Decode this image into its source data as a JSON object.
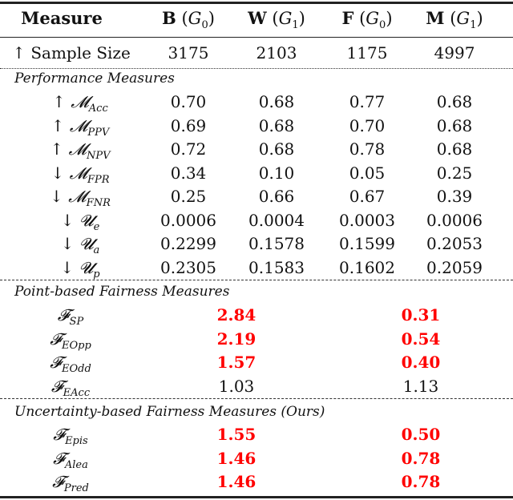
{
  "header": {
    "measure": "Measure",
    "columns": [
      {
        "name": "B",
        "group": "G",
        "sub": "0"
      },
      {
        "name": "W",
        "group": "G",
        "sub": "1"
      },
      {
        "name": "F",
        "group": "G",
        "sub": "0"
      },
      {
        "name": "M",
        "group": "G",
        "sub": "1"
      }
    ]
  },
  "sample_size": {
    "arrow": "↑",
    "label": "Sample Size",
    "values": [
      "3175",
      "2103",
      "1175",
      "4997"
    ]
  },
  "sections": {
    "performance": "Performance Measures",
    "point": "Point-based Fairness Measures",
    "uncertainty": "Uncertainty-based Fairness Measures (Ours)"
  },
  "performance_rows": [
    {
      "arrow": "↑",
      "symbol": "𝓜",
      "sub": "Acc",
      "values": [
        "0.70",
        "0.68",
        "0.77",
        "0.68"
      ]
    },
    {
      "arrow": "↑",
      "symbol": "𝓜",
      "sub": "PPV",
      "values": [
        "0.69",
        "0.68",
        "0.70",
        "0.68"
      ]
    },
    {
      "arrow": "↑",
      "symbol": "𝓜",
      "sub": "NPV",
      "values": [
        "0.72",
        "0.68",
        "0.78",
        "0.68"
      ]
    },
    {
      "arrow": "↓",
      "symbol": "𝓜",
      "sub": "FPR",
      "values": [
        "0.34",
        "0.10",
        "0.05",
        "0.25"
      ]
    },
    {
      "arrow": "↓",
      "symbol": "𝓜",
      "sub": "FNR",
      "values": [
        "0.25",
        "0.66",
        "0.67",
        "0.39"
      ]
    },
    {
      "arrow": "↓",
      "symbol": "𝓤",
      "sub": "e",
      "values": [
        "0.0006",
        "0.0004",
        "0.0003",
        "0.0006"
      ]
    },
    {
      "arrow": "↓",
      "symbol": "𝓤",
      "sub": "a",
      "values": [
        "0.2299",
        "0.1578",
        "0.1599",
        "0.2053"
      ]
    },
    {
      "arrow": "↓",
      "symbol": "𝓤",
      "sub": "p",
      "values": [
        "0.2305",
        "0.1583",
        "0.1602",
        "0.2059"
      ]
    }
  ],
  "point_rows": [
    {
      "symbol": "𝓕",
      "sub": "SP",
      "values": [
        "2.84",
        "0.31"
      ],
      "highlight": [
        true,
        true
      ]
    },
    {
      "symbol": "𝓕",
      "sub": "EOpp",
      "values": [
        "2.19",
        "0.54"
      ],
      "highlight": [
        true,
        true
      ]
    },
    {
      "symbol": "𝓕",
      "sub": "EOdd",
      "values": [
        "1.57",
        "0.40"
      ],
      "highlight": [
        true,
        true
      ]
    },
    {
      "symbol": "𝓕",
      "sub": "EAcc",
      "values": [
        "1.03",
        "1.13"
      ],
      "highlight": [
        false,
        false
      ]
    }
  ],
  "uncertainty_rows": [
    {
      "symbol": "𝓕",
      "sub": "Epis",
      "values": [
        "1.55",
        "0.50"
      ],
      "highlight": [
        true,
        true
      ]
    },
    {
      "symbol": "𝓕",
      "sub": "Alea",
      "values": [
        "1.46",
        "0.78"
      ],
      "highlight": [
        true,
        true
      ]
    },
    {
      "symbol": "𝓕",
      "sub": "Pred",
      "values": [
        "1.46",
        "0.78"
      ],
      "highlight": [
        true,
        true
      ]
    }
  ],
  "colors": {
    "highlight": "#ff0000",
    "text": "#111111"
  }
}
